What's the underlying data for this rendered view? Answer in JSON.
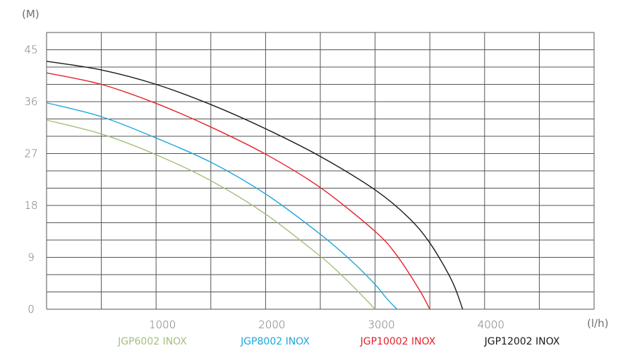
{
  "chart_data": {
    "type": "line",
    "ylabel": "(M)",
    "xlabel": "(l/h)",
    "xlim": [
      0,
      5000
    ],
    "ylim": [
      0,
      48
    ],
    "x_ticks": [
      1000,
      2000,
      3000,
      4000
    ],
    "x_tick_labels": [
      "1000",
      "2000",
      "3000",
      "4000"
    ],
    "y_ticks": [
      0,
      9,
      18,
      27,
      36,
      45
    ],
    "y_tick_labels": [
      "0",
      "9",
      "18",
      "27",
      "36",
      "45"
    ],
    "grid": true,
    "legend_position": "bottom",
    "series": [
      {
        "name": "JGP6002 INOX",
        "color": "#a4bf7c",
        "x": [
          0,
          500,
          1000,
          1500,
          2000,
          2500,
          2700,
          2900,
          3000
        ],
        "y": [
          32.8,
          30.4,
          26.8,
          22.3,
          16.5,
          9.2,
          5.8,
          2.0,
          0
        ]
      },
      {
        "name": "JGP8002 INOX",
        "color": "#1ea8dd",
        "x": [
          0,
          500,
          1000,
          1500,
          2000,
          2500,
          2800,
          3000,
          3100,
          3200
        ],
        "y": [
          35.8,
          33.4,
          29.7,
          25.5,
          20.0,
          13.0,
          8.1,
          4.3,
          2.0,
          0
        ]
      },
      {
        "name": "JGP10002 INOX",
        "color": "#e5212c",
        "x": [
          0,
          500,
          1000,
          1500,
          2000,
          2500,
          3000,
          3200,
          3400,
          3500
        ],
        "y": [
          41.0,
          39.0,
          35.7,
          31.6,
          26.9,
          21.1,
          13.5,
          9.3,
          3.5,
          0
        ]
      },
      {
        "name": "JGP12002 INOX",
        "color": "#1a1a1a",
        "x": [
          0,
          500,
          1000,
          1500,
          2000,
          2500,
          3000,
          3300,
          3500,
          3700,
          3800
        ],
        "y": [
          43.0,
          41.5,
          39.0,
          35.5,
          31.3,
          26.5,
          20.7,
          16.0,
          11.5,
          5.0,
          0
        ]
      }
    ]
  }
}
